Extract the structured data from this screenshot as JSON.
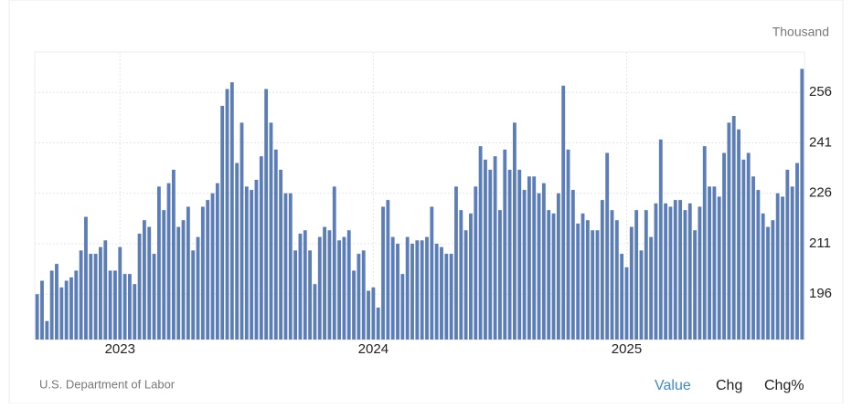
{
  "chart_data": {
    "type": "bar",
    "y_label": "Thousand",
    "color": "#5b7db8",
    "grid": true,
    "ylim": [
      182.5,
      268
    ],
    "yticks": [
      196,
      211,
      226,
      241,
      256
    ],
    "categories": [
      null,
      null,
      null,
      null,
      null,
      null,
      null,
      null,
      null,
      null,
      null,
      null,
      null,
      null,
      null,
      null,
      null,
      "2023",
      null,
      null,
      null,
      null,
      null,
      null,
      null,
      null,
      null,
      null,
      null,
      null,
      null,
      null,
      null,
      null,
      null,
      null,
      null,
      null,
      null,
      null,
      null,
      null,
      null,
      null,
      null,
      null,
      null,
      null,
      null,
      null,
      null,
      null,
      null,
      null,
      null,
      null,
      null,
      null,
      null,
      null,
      null,
      null,
      null,
      null,
      null,
      null,
      null,
      null,
      null,
      "2024",
      null,
      null,
      null,
      null,
      null,
      null,
      null,
      null,
      null,
      null,
      null,
      null,
      null,
      null,
      null,
      null,
      null,
      null,
      null,
      null,
      null,
      null,
      null,
      null,
      null,
      null,
      null,
      null,
      null,
      null,
      null,
      null,
      null,
      null,
      null,
      null,
      null,
      null,
      null,
      null,
      null,
      null,
      null,
      null,
      null,
      null,
      null,
      null,
      null,
      null,
      null,
      "2025",
      null,
      null,
      null,
      null,
      null,
      null,
      null,
      null,
      null,
      null,
      null,
      null,
      null,
      null,
      null,
      null,
      null,
      null,
      null,
      null,
      null,
      null,
      null,
      null,
      null,
      null,
      null,
      null,
      null,
      null,
      null,
      null,
      null,
      null,
      null,
      null
    ],
    "values": [
      196,
      200,
      188,
      203,
      205,
      198,
      200,
      201,
      203,
      209,
      219,
      208,
      208,
      210,
      212,
      203,
      203,
      210,
      202,
      202,
      199,
      214,
      218,
      216,
      208,
      228,
      221,
      229,
      233,
      216,
      218,
      222,
      209,
      213,
      222,
      224,
      226,
      229,
      252,
      257,
      259,
      235,
      247,
      228,
      227,
      230,
      237,
      257,
      247,
      239,
      233,
      226,
      226,
      209,
      214,
      215,
      209,
      199,
      213,
      216,
      215,
      228,
      212,
      213,
      215,
      203,
      208,
      209,
      197,
      198,
      192,
      222,
      224,
      213,
      211,
      202,
      213,
      211,
      212,
      212,
      213,
      222,
      211,
      210,
      208,
      208,
      228,
      221,
      215,
      220,
      228,
      240,
      236,
      233,
      237,
      221,
      239,
      233,
      247,
      233,
      227,
      231,
      231,
      226,
      229,
      221,
      220,
      226,
      258,
      239,
      227,
      217,
      220,
      218,
      215,
      215,
      224,
      238,
      221,
      218,
      208,
      204,
      216,
      221,
      209,
      221,
      213,
      223,
      242,
      223,
      222,
      224,
      224,
      221,
      223,
      215,
      222,
      240,
      228,
      228,
      225,
      238,
      247,
      249,
      245,
      236,
      238,
      231,
      227,
      220,
      216,
      218,
      226,
      225,
      233,
      228,
      235,
      263
    ]
  },
  "source": "U.S. Department of Labor",
  "tabs": [
    "Value",
    "Chg",
    "Chg%"
  ]
}
